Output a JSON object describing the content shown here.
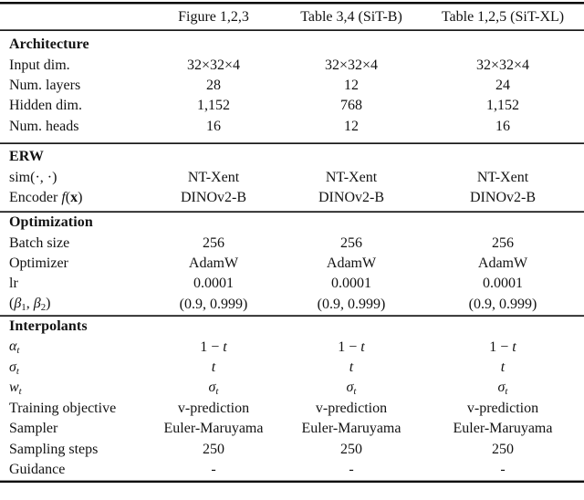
{
  "colors": {
    "background": "#ffffff",
    "text": "#121212",
    "rule": "#000000"
  },
  "table": {
    "columns": [
      "",
      "Figure 1,2,3",
      "Table 3,4 (SiT-B)",
      "Table 1,2,5 (SiT-XL)"
    ],
    "sections": [
      {
        "title": "Architecture",
        "rows": [
          {
            "label": "Input dim.",
            "values": [
              "32×32×4",
              "32×32×4",
              "32×32×4"
            ]
          },
          {
            "label": "Num. layers",
            "values": [
              "28",
              "12",
              "24"
            ]
          },
          {
            "label": "Hidden dim.",
            "values": [
              "1,152",
              "768",
              "1,152"
            ]
          },
          {
            "label": "Num. heads",
            "values": [
              "16",
              "12",
              "16"
            ]
          }
        ]
      },
      {
        "title": "ERW",
        "rows": [
          {
            "label": "sim(·, ·)",
            "values": [
              "NT-Xent",
              "NT-Xent",
              "NT-Xent"
            ]
          },
          {
            "label": [
              {
                "t": "Encoder "
              },
              {
                "t": "f",
                "s": "i"
              },
              {
                "t": "("
              },
              {
                "t": "x",
                "s": "b"
              },
              {
                "t": ")"
              }
            ],
            "values": [
              "DINOv2-B",
              "DINOv2-B",
              "DINOv2-B"
            ]
          }
        ]
      },
      {
        "title": "Optimization",
        "rows": [
          {
            "label": "Batch size",
            "values": [
              "256",
              "256",
              "256"
            ]
          },
          {
            "label": "Optimizer",
            "values": [
              "AdamW",
              "AdamW",
              "AdamW"
            ]
          },
          {
            "label": "lr",
            "values": [
              "0.0001",
              "0.0001",
              "0.0001"
            ]
          },
          {
            "label": [
              {
                "t": "("
              },
              {
                "t": "β",
                "s": "i"
              },
              {
                "t": "1",
                "s": "sub"
              },
              {
                "t": ", "
              },
              {
                "t": "β",
                "s": "i"
              },
              {
                "t": "2",
                "s": "sub"
              },
              {
                "t": ")"
              }
            ],
            "values": [
              "(0.9, 0.999)",
              "(0.9, 0.999)",
              "(0.9, 0.999)"
            ]
          }
        ]
      },
      {
        "title": "Interpolants",
        "rows": [
          {
            "label": [
              {
                "t": "α",
                "s": "i"
              },
              {
                "t": "t",
                "s": "i sub"
              }
            ],
            "values": [
              [
                {
                  "t": "1 − "
                },
                {
                  "t": "t",
                  "s": "i"
                }
              ],
              [
                {
                  "t": "1 − "
                },
                {
                  "t": "t",
                  "s": "i"
                }
              ],
              [
                {
                  "t": "1 − "
                },
                {
                  "t": "t",
                  "s": "i"
                }
              ]
            ]
          },
          {
            "label": [
              {
                "t": "σ",
                "s": "i"
              },
              {
                "t": "t",
                "s": "i sub"
              }
            ],
            "values": [
              [
                {
                  "t": "t",
                  "s": "i"
                }
              ],
              [
                {
                  "t": "t",
                  "s": "i"
                }
              ],
              [
                {
                  "t": "t",
                  "s": "i"
                }
              ]
            ]
          },
          {
            "label": [
              {
                "t": "w",
                "s": "i"
              },
              {
                "t": "t",
                "s": "i sub"
              }
            ],
            "values": [
              [
                {
                  "t": "σ",
                  "s": "i"
                },
                {
                  "t": "t",
                  "s": "i sub"
                }
              ],
              [
                {
                  "t": "σ",
                  "s": "i"
                },
                {
                  "t": "t",
                  "s": "i sub"
                }
              ],
              [
                {
                  "t": "σ",
                  "s": "i"
                },
                {
                  "t": "t",
                  "s": "i sub"
                }
              ]
            ]
          },
          {
            "label": "Training objective",
            "values": [
              "v-prediction",
              "v-prediction",
              "v-prediction"
            ]
          },
          {
            "label": "Sampler",
            "values": [
              "Euler-Maruyama",
              "Euler-Maruyama",
              "Euler-Maruyama"
            ]
          },
          {
            "label": "Sampling steps",
            "values": [
              "250",
              "250",
              "250"
            ]
          },
          {
            "label": "Guidance",
            "values": [
              "-",
              "-",
              "-"
            ]
          }
        ]
      }
    ]
  }
}
